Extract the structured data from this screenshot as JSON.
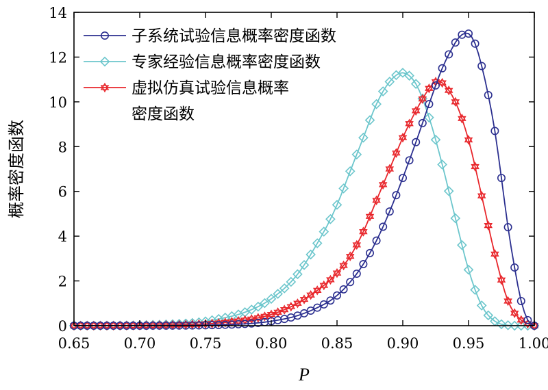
{
  "chart_data": {
    "type": "line",
    "xlabel": "P",
    "ylabel": "概率密度函数",
    "xlim": [
      0.65,
      1.0
    ],
    "ylim": [
      0,
      14
    ],
    "xticks": [
      "0.65",
      "0.70",
      "0.75",
      "0.80",
      "0.85",
      "0.90",
      "0.95",
      "1.00"
    ],
    "yticks": [
      "0",
      "2",
      "4",
      "6",
      "8",
      "10",
      "12",
      "14"
    ],
    "grid": false,
    "legend_position": "top-left",
    "series": [
      {
        "name": "子系统试验信息概率密度函数",
        "color": "#2b2f8f",
        "marker": "circle",
        "x": [
          0.65,
          0.7,
          0.75,
          0.78,
          0.8,
          0.82,
          0.84,
          0.85,
          0.86,
          0.87,
          0.88,
          0.89,
          0.9,
          0.91,
          0.92,
          0.93,
          0.94,
          0.945,
          0.95,
          0.955,
          0.96,
          0.965,
          0.97,
          0.975,
          0.98,
          0.985,
          0.99,
          0.995,
          1.0
        ],
        "y": [
          0.0,
          0.0,
          0.02,
          0.08,
          0.2,
          0.45,
          0.95,
          1.35,
          1.95,
          2.75,
          3.8,
          5.1,
          6.6,
          8.2,
          9.9,
          11.5,
          12.65,
          13.0,
          13.05,
          12.6,
          11.6,
          10.3,
          8.7,
          6.6,
          4.4,
          2.6,
          1.1,
          0.25,
          0.0
        ]
      },
      {
        "name": "专家经验信息概率密度函数",
        "color": "#6cc6cc",
        "marker": "diamond",
        "x": [
          0.65,
          0.7,
          0.74,
          0.76,
          0.78,
          0.8,
          0.82,
          0.84,
          0.85,
          0.86,
          0.87,
          0.88,
          0.89,
          0.9,
          0.91,
          0.92,
          0.93,
          0.94,
          0.95,
          0.96,
          0.97,
          0.98,
          1.0
        ],
        "y": [
          0.0,
          0.02,
          0.12,
          0.3,
          0.6,
          1.2,
          2.3,
          4.2,
          5.4,
          6.9,
          8.4,
          9.9,
          10.9,
          11.3,
          10.8,
          9.3,
          7.2,
          4.8,
          2.5,
          0.9,
          0.2,
          0.02,
          0.0
        ]
      },
      {
        "name": "虚拟仿真试验信息概率密度函数",
        "color": "#e8262b",
        "marker": "star",
        "x": [
          0.65,
          0.7,
          0.75,
          0.78,
          0.8,
          0.82,
          0.84,
          0.85,
          0.86,
          0.87,
          0.88,
          0.89,
          0.9,
          0.91,
          0.92,
          0.925,
          0.93,
          0.94,
          0.95,
          0.96,
          0.97,
          0.98,
          0.99,
          1.0
        ],
        "y": [
          0.0,
          0.01,
          0.08,
          0.25,
          0.5,
          1.0,
          1.8,
          2.35,
          3.1,
          4.2,
          5.6,
          7.0,
          8.4,
          9.6,
          10.6,
          10.9,
          10.85,
          10.0,
          8.3,
          5.8,
          3.2,
          1.1,
          0.25,
          0.0
        ]
      }
    ],
    "legend_lines": [
      [
        "子系统试验信息概率密度函数"
      ],
      [
        "专家经验信息概率密度函数"
      ],
      [
        "虚拟仿真试验信息概率",
        "密度函数"
      ]
    ]
  }
}
